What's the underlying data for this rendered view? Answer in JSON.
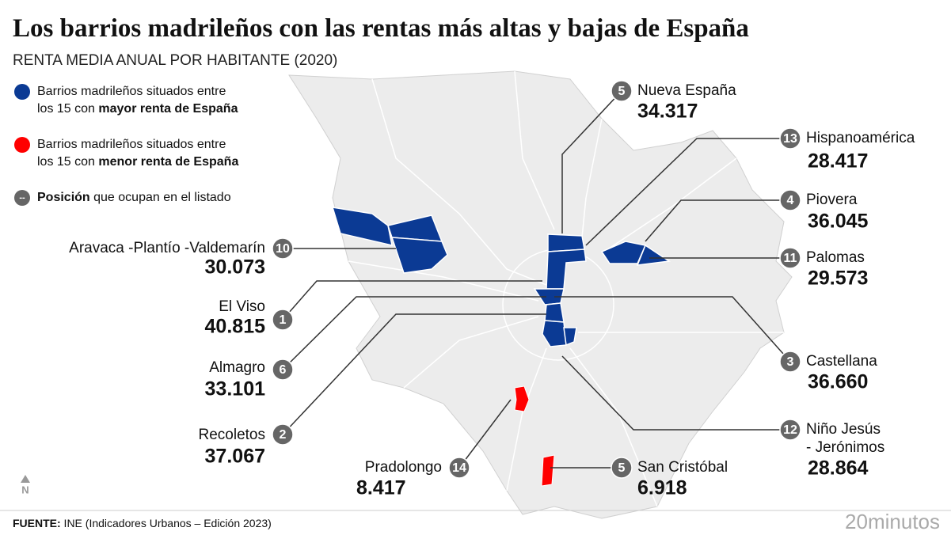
{
  "header": {
    "title": "Los barrios madrileños con las rentas más altas y bajas de España",
    "subtitle": "RENTA MEDIA ANUAL POR HABITANTE (2020)"
  },
  "legend": [
    {
      "line1": "Barrios madrileños situados entre",
      "line2": "los 15 con ",
      "bold": "mayor renta de España"
    },
    {
      "line1": "Barrios madrileños situados entre",
      "line2": "los 15 con ",
      "bold": "menor renta de España"
    },
    {
      "symbol": "--",
      "bold": "Posición",
      "text": " que ocupan en el listado"
    }
  ],
  "callouts": [
    {
      "rank": "5",
      "name": [
        "Nueva España"
      ],
      "value": "34.317"
    },
    {
      "rank": "13",
      "name": [
        "Hispanoamérica"
      ],
      "value": "28.417"
    },
    {
      "rank": "4",
      "name": [
        "Piovera"
      ],
      "value": "36.045"
    },
    {
      "rank": "11",
      "name": [
        "Palomas"
      ],
      "value": "29.573"
    },
    {
      "rank": "10",
      "name": [
        "Aravaca -Plantío -Valdemarín"
      ],
      "value": "30.073"
    },
    {
      "rank": "1",
      "name": [
        "El Viso"
      ],
      "value": "40.815"
    },
    {
      "rank": "6",
      "name": [
        "Almagro"
      ],
      "value": "33.101"
    },
    {
      "rank": "2",
      "name": [
        "Recoletos"
      ],
      "value": "37.067"
    },
    {
      "rank": "3",
      "name": [
        "Castellana"
      ],
      "value": "36.660"
    },
    {
      "rank": "12",
      "name": [
        "Niño Jesús",
        "- Jerónimos"
      ],
      "value": "28.864"
    },
    {
      "rank": "14",
      "name": [
        "Pradolongo"
      ],
      "value": "8.417"
    },
    {
      "rank": "5",
      "name": [
        "San Cristóbal"
      ],
      "value": "6.918"
    }
  ],
  "map": {
    "north": "N"
  },
  "footer": {
    "source_label": "FUENTE:",
    "source": " INE (Indicadores Urbanos – Edición 2023)",
    "logo": "20minutos"
  }
}
